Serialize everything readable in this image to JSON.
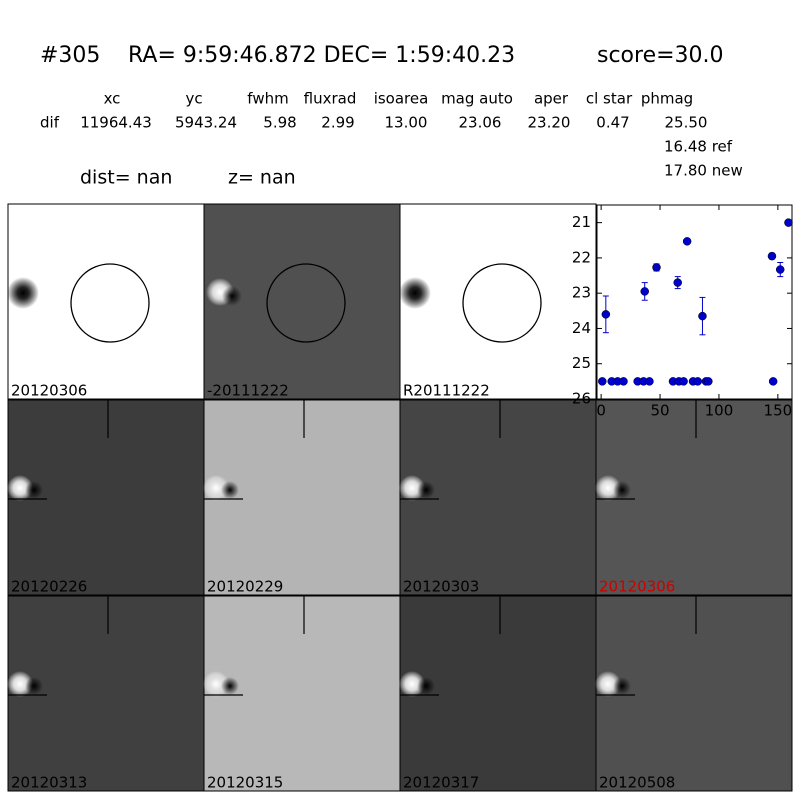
{
  "header": {
    "id": "#305",
    "coords": "RA= 9:59:46.872 DEC= 1:59:40.23",
    "score": "score=30.0"
  },
  "table": {
    "columns": [
      "xc",
      "yc",
      "fwhm",
      "fluxrad",
      "isoarea",
      "mag auto",
      "aper",
      "cl star",
      "phmag"
    ],
    "row_label": "dif",
    "values": [
      "11964.43",
      "5943.24",
      "5.98",
      "2.99",
      "13.00",
      "23.06",
      "23.20",
      "0.47",
      "25.50"
    ],
    "extra": [
      "16.48 ref",
      "17.80 new"
    ]
  },
  "dist": {
    "dist": "dist=   nan",
    "z": "z=   nan"
  },
  "panels": [
    {
      "label": "20120306",
      "label_color": "#000000"
    },
    {
      "label": "-20111222",
      "label_color": "#000000"
    },
    {
      "label": "R20111222",
      "label_color": "#000000"
    },
    {
      "label": "20120226",
      "label_color": "#000000"
    },
    {
      "label": "20120229",
      "label_color": "#000000"
    },
    {
      "label": "20120303",
      "label_color": "#000000"
    },
    {
      "label": "20120306",
      "label_color": "#cc0000"
    },
    {
      "label": "20120313",
      "label_color": "#000000"
    },
    {
      "label": "20120315",
      "label_color": "#000000"
    },
    {
      "label": "20120317",
      "label_color": "#000000"
    },
    {
      "label": "20120508",
      "label_color": "#000000"
    }
  ],
  "chart_data": {
    "type": "scatter",
    "color": "#0000cc",
    "x": [
      1,
      4,
      9,
      14,
      19,
      31,
      36,
      37,
      41,
      47,
      61,
      65,
      66,
      70,
      73,
      78,
      82,
      86,
      89,
      91,
      145,
      146,
      152,
      159
    ],
    "values": [
      25.5,
      23.6,
      25.5,
      25.5,
      25.5,
      25.5,
      25.5,
      22.95,
      25.5,
      22.27,
      25.5,
      22.7,
      25.5,
      25.5,
      21.53,
      25.5,
      25.5,
      23.65,
      25.5,
      25.5,
      21.95,
      25.5,
      22.33,
      21.0
    ],
    "errors": [
      0,
      0.52,
      0,
      0,
      0,
      0,
      0,
      0.25,
      0,
      0.1,
      0,
      0.17,
      0,
      0,
      0.05,
      0,
      0,
      0.53,
      0,
      0,
      0.08,
      0,
      0.2,
      0
    ],
    "xlim": [
      -3.5,
      162
    ],
    "ylim": [
      26,
      20.5
    ],
    "xticks": [
      0,
      50,
      100,
      150
    ],
    "yticks": [
      21,
      22,
      23,
      24,
      25,
      26
    ]
  }
}
